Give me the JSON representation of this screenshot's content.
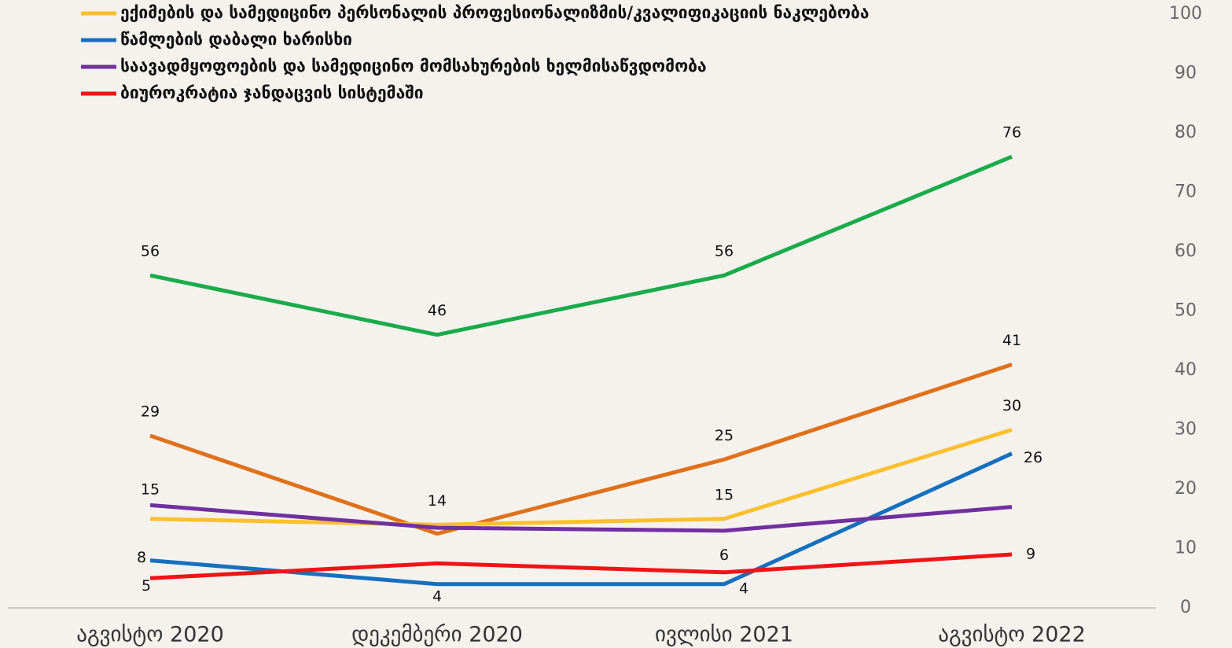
{
  "chart_data": {
    "type": "line",
    "categories": [
      "აგვისტო 2020",
      "დეკემბერი 2020",
      "ივლისი 2021",
      "აგვისტო 2022"
    ],
    "series": [
      {
        "color": "#1aab4b",
        "values": [
          56,
          46,
          56,
          76
        ],
        "value_labels": [
          "56",
          "46",
          "56",
          "76"
        ]
      },
      {
        "color": "#e0711b",
        "values": [
          29,
          12.5,
          25,
          41
        ],
        "value_labels": [
          "29",
          null,
          "25",
          "41"
        ]
      },
      {
        "name": "ექიმების და სამედიცინო პერსონალის პროფესიონალიზმის/კვალიფიკაციის ნაკლებობა",
        "color": "#fbc02d",
        "values": [
          15,
          14,
          15,
          30
        ],
        "value_labels": [
          "15",
          "14",
          "15",
          "30"
        ]
      },
      {
        "name": "წამლების დაბალი ხარისხი",
        "color": "#1670be",
        "values": [
          8,
          4,
          4,
          26
        ],
        "value_labels": [
          "8",
          "4",
          "4",
          "26"
        ]
      },
      {
        "name": "საავადმყოფოების და სამედიცინო მომსახურების ხელმისაწვდომობა",
        "color": "#7030a0",
        "values": [
          17.3,
          13.5,
          13,
          17
        ],
        "value_labels": [
          null,
          null,
          null,
          null
        ]
      },
      {
        "name": "ბიუროკრატია ჯანდაცვის სისტემაში",
        "color": "#f01414",
        "values": [
          5,
          7.5,
          6,
          9
        ],
        "value_labels": [
          "5",
          null,
          "6",
          "9"
        ]
      }
    ],
    "ylim": [
      0,
      100
    ],
    "yticks": [
      0,
      10,
      20,
      30,
      40,
      50,
      60,
      70,
      80,
      90,
      100
    ],
    "y_axis_side": "right",
    "grid": false,
    "legend": "top-left"
  }
}
